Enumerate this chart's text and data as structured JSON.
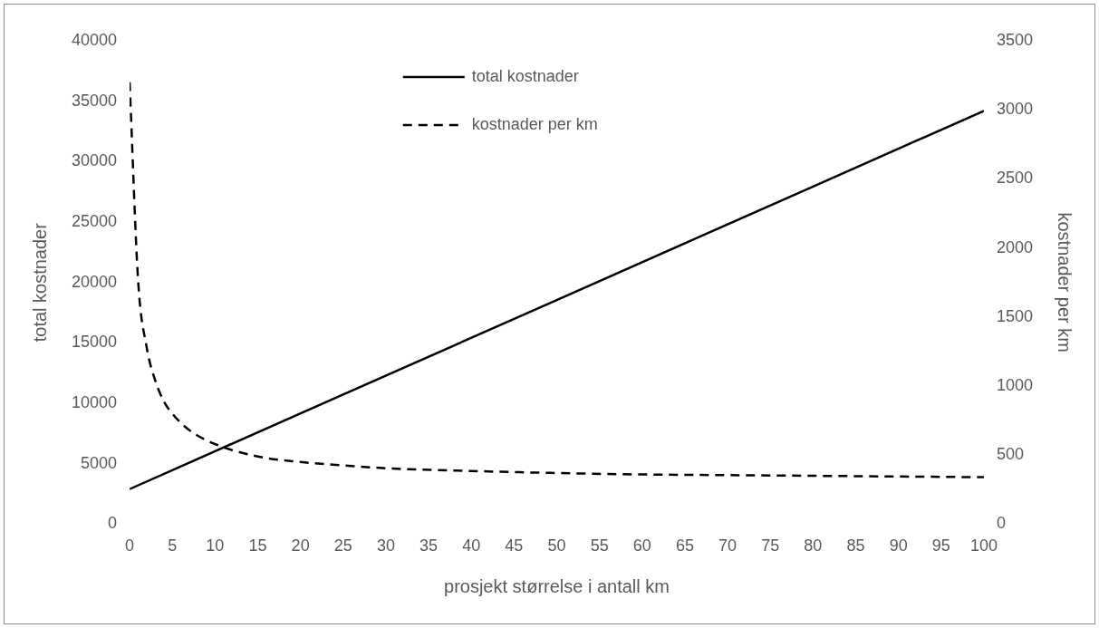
{
  "chart_data": {
    "type": "line",
    "xlabel": "prosjekt størrelse i antall km",
    "ylabel": "total kostnader",
    "y2label": "kostnader per km",
    "xlim": [
      0,
      100
    ],
    "xticks": [
      0,
      5,
      10,
      15,
      20,
      25,
      30,
      35,
      40,
      45,
      50,
      55,
      60,
      65,
      70,
      75,
      80,
      85,
      90,
      95,
      100
    ],
    "ylim": [
      0,
      40000
    ],
    "yticks": [
      0,
      5000,
      10000,
      15000,
      20000,
      25000,
      30000,
      35000,
      40000
    ],
    "y2lim": [
      0,
      3500
    ],
    "y2ticks": [
      0,
      500,
      1000,
      1500,
      2000,
      2500,
      3000,
      3500
    ],
    "grid": false,
    "legend": "top",
    "marker": "none",
    "series": [
      {
        "name": "total kostnader",
        "color": "#000000",
        "line_style": "solid",
        "x": [
          0,
          50,
          100
        ],
        "values": [
          2900,
          18550,
          34200
        ]
      },
      {
        "name": "kostnader per km",
        "color": "#000000",
        "line_style": "dashed",
        "axis": "y2",
        "x": [
          0,
          1,
          2,
          3,
          4,
          5,
          7,
          10,
          15,
          20,
          25,
          30,
          40,
          50,
          60,
          70,
          80,
          90,
          100
        ],
        "values": [
          3200,
          1760,
          1280,
          1040,
          890,
          800,
          680,
          580,
          490,
          450,
          425,
          405,
          385,
          370,
          360,
          355,
          350,
          345,
          340
        ]
      }
    ]
  }
}
